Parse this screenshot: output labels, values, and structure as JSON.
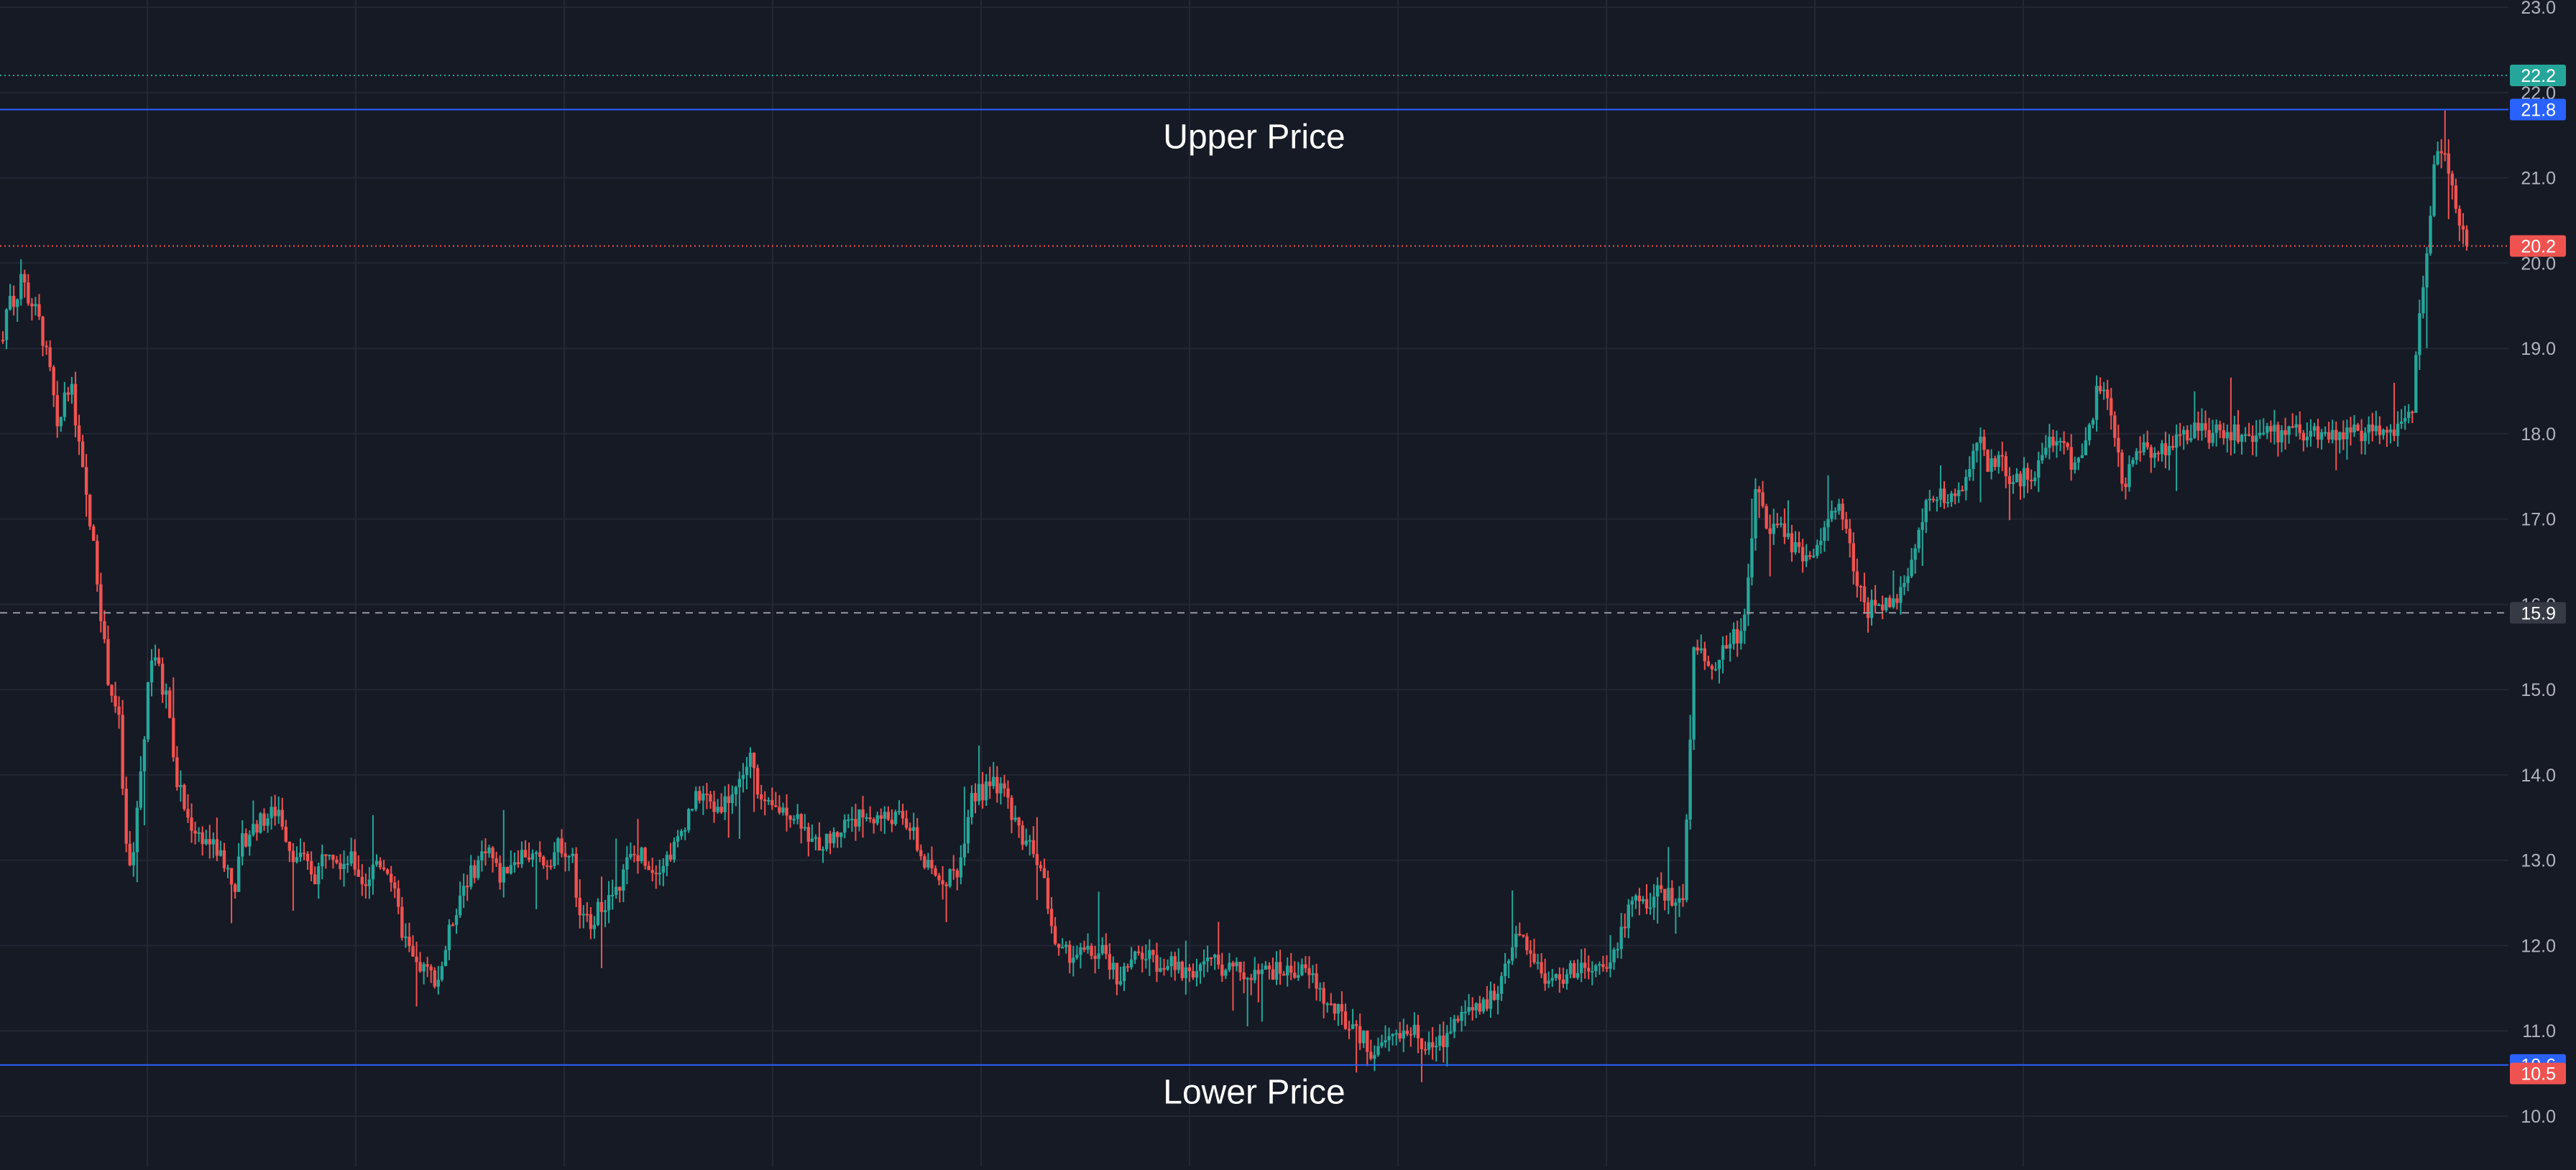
{
  "colors": {
    "background": "#161a25",
    "grid": "#232734",
    "up": "#26a69a",
    "down": "#ef5350",
    "band_line": "#2962ff",
    "axis_text": "#b2b5be",
    "label_text": "#ffffff",
    "mid_line": "#9598a1",
    "target_line": "#26a69a",
    "last_line": "#ef5350",
    "mid_tag": "#363a45"
  },
  "chart_data": {
    "type": "candlestick",
    "ylim": [
      9.5,
      23.0
    ],
    "y_ticks": [
      "10.0",
      "11.0",
      "12.0",
      "13.0",
      "14.0",
      "15.0",
      "16.0",
      "17.0",
      "18.0",
      "19.0",
      "20.0",
      "21.0",
      "22.0",
      "23.0"
    ],
    "grid": true,
    "x_labels_visible": false,
    "annotations": [
      {
        "label": "Upper Price",
        "price": 21.8
      },
      {
        "label": "Lower Price",
        "price": 10.6
      }
    ],
    "reference_lines": [
      {
        "price": 22.2,
        "tag": "22.2",
        "style": "dotted",
        "color_key": "target_line"
      },
      {
        "price": 21.8,
        "tag": "21.8",
        "style": "solid",
        "color_key": "band_line"
      },
      {
        "price": 20.2,
        "tag": "20.2",
        "style": "dotted",
        "color_key": "last_line"
      },
      {
        "price": 15.9,
        "tag": "15.9",
        "style": "dashed",
        "color_key": "mid_line"
      },
      {
        "price": 10.6,
        "tag": "10.6",
        "style": "solid",
        "color_key": "band_line"
      },
      {
        "price": 10.5,
        "tag": "10.5",
        "style": "none",
        "color_key": "last_line"
      }
    ],
    "price_path": [
      [
        0,
        19.1
      ],
      [
        1,
        19.7
      ],
      [
        2,
        19.5
      ],
      [
        3,
        19.9
      ],
      [
        4,
        19.6
      ],
      [
        5,
        19.5
      ],
      [
        6,
        19.3
      ],
      [
        8,
        18.6
      ],
      [
        9,
        17.9
      ],
      [
        10,
        18.5
      ],
      [
        11,
        18.6
      ],
      [
        12,
        18.1
      ],
      [
        14,
        17.0
      ],
      [
        15,
        16.6
      ],
      [
        17,
        15.2
      ],
      [
        19,
        14.6
      ],
      [
        20,
        13.2
      ],
      [
        21,
        12.8
      ],
      [
        22,
        13.7
      ],
      [
        23,
        14.4
      ],
      [
        24,
        15.4
      ],
      [
        25,
        15.4
      ],
      [
        26,
        15.0
      ],
      [
        27,
        14.9
      ],
      [
        28,
        14.0
      ],
      [
        29,
        13.8
      ],
      [
        30,
        13.5
      ],
      [
        32,
        13.3
      ],
      [
        34,
        13.2
      ],
      [
        36,
        13.0
      ],
      [
        38,
        12.7
      ],
      [
        39,
        13.2
      ],
      [
        41,
        13.4
      ],
      [
        43,
        13.5
      ],
      [
        45,
        13.6
      ],
      [
        47,
        13.1
      ],
      [
        49,
        13.0
      ],
      [
        51,
        12.8
      ],
      [
        53,
        13.2
      ],
      [
        55,
        13.0
      ],
      [
        57,
        13.0
      ],
      [
        59,
        12.7
      ],
      [
        61,
        13.0
      ],
      [
        63,
        12.9
      ],
      [
        65,
        12.2
      ],
      [
        67,
        11.8
      ],
      [
        69,
        11.7
      ],
      [
        71,
        11.6
      ],
      [
        73,
        12.2
      ],
      [
        75,
        12.7
      ],
      [
        77,
        12.9
      ],
      [
        79,
        13.2
      ],
      [
        81,
        12.8
      ],
      [
        83,
        13.0
      ],
      [
        85,
        13.1
      ],
      [
        87,
        13.0
      ],
      [
        89,
        13.0
      ],
      [
        91,
        13.2
      ],
      [
        93,
        13.0
      ],
      [
        94,
        12.3
      ],
      [
        96,
        12.3
      ],
      [
        98,
        12.5
      ],
      [
        100,
        12.6
      ],
      [
        102,
        13.0
      ],
      [
        104,
        13.1
      ],
      [
        106,
        12.9
      ],
      [
        108,
        13.0
      ],
      [
        110,
        13.2
      ],
      [
        112,
        13.6
      ],
      [
        114,
        13.8
      ],
      [
        116,
        13.6
      ],
      [
        118,
        13.7
      ],
      [
        120,
        13.9
      ],
      [
        122,
        14.2
      ],
      [
        124,
        13.6
      ],
      [
        126,
        13.6
      ],
      [
        128,
        13.6
      ],
      [
        130,
        13.5
      ],
      [
        132,
        13.2
      ],
      [
        134,
        13.2
      ],
      [
        136,
        13.3
      ],
      [
        138,
        13.5
      ],
      [
        140,
        13.5
      ],
      [
        142,
        13.5
      ],
      [
        144,
        13.5
      ],
      [
        146,
        13.5
      ],
      [
        148,
        13.4
      ],
      [
        150,
        13.0
      ],
      [
        152,
        12.8
      ],
      [
        154,
        12.8
      ],
      [
        156,
        12.9
      ],
      [
        158,
        13.8
      ],
      [
        160,
        13.8
      ],
      [
        162,
        13.9
      ],
      [
        164,
        13.7
      ],
      [
        166,
        13.3
      ],
      [
        168,
        13.2
      ],
      [
        170,
        12.7
      ],
      [
        172,
        11.9
      ],
      [
        174,
        11.9
      ],
      [
        176,
        11.9
      ],
      [
        178,
        11.9
      ],
      [
        180,
        11.9
      ],
      [
        182,
        11.6
      ],
      [
        184,
        11.8
      ],
      [
        186,
        11.9
      ],
      [
        188,
        11.8
      ],
      [
        190,
        11.8
      ],
      [
        192,
        11.7
      ],
      [
        194,
        11.7
      ],
      [
        196,
        11.8
      ],
      [
        198,
        11.8
      ],
      [
        200,
        11.7
      ],
      [
        202,
        11.7
      ],
      [
        204,
        11.6
      ],
      [
        206,
        11.7
      ],
      [
        208,
        11.7
      ],
      [
        210,
        11.7
      ],
      [
        212,
        11.7
      ],
      [
        214,
        11.6
      ],
      [
        216,
        11.3
      ],
      [
        218,
        11.2
      ],
      [
        220,
        11.0
      ],
      [
        222,
        10.9
      ],
      [
        224,
        10.7
      ],
      [
        226,
        10.9
      ],
      [
        228,
        11.0
      ],
      [
        230,
        11.0
      ],
      [
        232,
        10.8
      ],
      [
        234,
        10.8
      ],
      [
        236,
        11.0
      ],
      [
        238,
        11.2
      ],
      [
        240,
        11.2
      ],
      [
        242,
        11.3
      ],
      [
        244,
        11.5
      ],
      [
        246,
        12.0
      ],
      [
        248,
        12.1
      ],
      [
        250,
        11.8
      ],
      [
        252,
        11.6
      ],
      [
        254,
        11.6
      ],
      [
        256,
        11.7
      ],
      [
        258,
        11.7
      ],
      [
        260,
        11.7
      ],
      [
        262,
        11.7
      ],
      [
        264,
        12.2
      ],
      [
        266,
        12.5
      ],
      [
        268,
        12.5
      ],
      [
        270,
        12.6
      ],
      [
        272,
        12.6
      ],
      [
        274,
        12.4
      ],
      [
        276,
        15.6
      ],
      [
        278,
        15.2
      ],
      [
        280,
        15.4
      ],
      [
        282,
        15.6
      ],
      [
        284,
        15.7
      ],
      [
        286,
        17.4
      ],
      [
        288,
        16.9
      ],
      [
        290,
        16.9
      ],
      [
        292,
        16.7
      ],
      [
        294,
        16.5
      ],
      [
        296,
        16.6
      ],
      [
        298,
        17.1
      ],
      [
        300,
        17.1
      ],
      [
        302,
        16.4
      ],
      [
        304,
        15.9
      ],
      [
        306,
        16.0
      ],
      [
        308,
        16.0
      ],
      [
        310,
        16.2
      ],
      [
        312,
        16.6
      ],
      [
        314,
        17.3
      ],
      [
        316,
        17.3
      ],
      [
        318,
        17.2
      ],
      [
        320,
        17.4
      ],
      [
        322,
        18.0
      ],
      [
        324,
        17.6
      ],
      [
        326,
        17.7
      ],
      [
        328,
        17.4
      ],
      [
        330,
        17.5
      ],
      [
        332,
        17.6
      ],
      [
        334,
        17.9
      ],
      [
        336,
        17.9
      ],
      [
        338,
        17.6
      ],
      [
        340,
        17.9
      ],
      [
        342,
        18.6
      ],
      [
        344,
        18.2
      ],
      [
        346,
        17.3
      ],
      [
        348,
        17.9
      ],
      [
        350,
        17.8
      ],
      [
        352,
        17.8
      ],
      [
        354,
        17.9
      ],
      [
        356,
        18.0
      ],
      [
        358,
        18.1
      ],
      [
        360,
        18.0
      ],
      [
        362,
        18.0
      ],
      [
        364,
        18.0
      ],
      [
        366,
        18.0
      ],
      [
        368,
        18.0
      ],
      [
        370,
        18.0
      ],
      [
        372,
        18.0
      ],
      [
        374,
        18.0
      ],
      [
        376,
        18.0
      ],
      [
        378,
        18.0
      ],
      [
        380,
        18.0
      ],
      [
        382,
        18.0
      ],
      [
        384,
        18.0
      ],
      [
        386,
        18.0
      ],
      [
        388,
        18.0
      ],
      [
        390,
        18.0
      ],
      [
        392,
        18.1
      ],
      [
        393,
        18.2
      ],
      [
        394,
        19.2
      ],
      [
        395,
        19.8
      ],
      [
        396,
        20.6
      ],
      [
        397,
        21.3
      ],
      [
        398,
        21.4
      ],
      [
        399,
        21.1
      ],
      [
        400,
        20.8
      ],
      [
        401,
        20.4
      ],
      [
        402,
        20.2
      ]
    ]
  }
}
